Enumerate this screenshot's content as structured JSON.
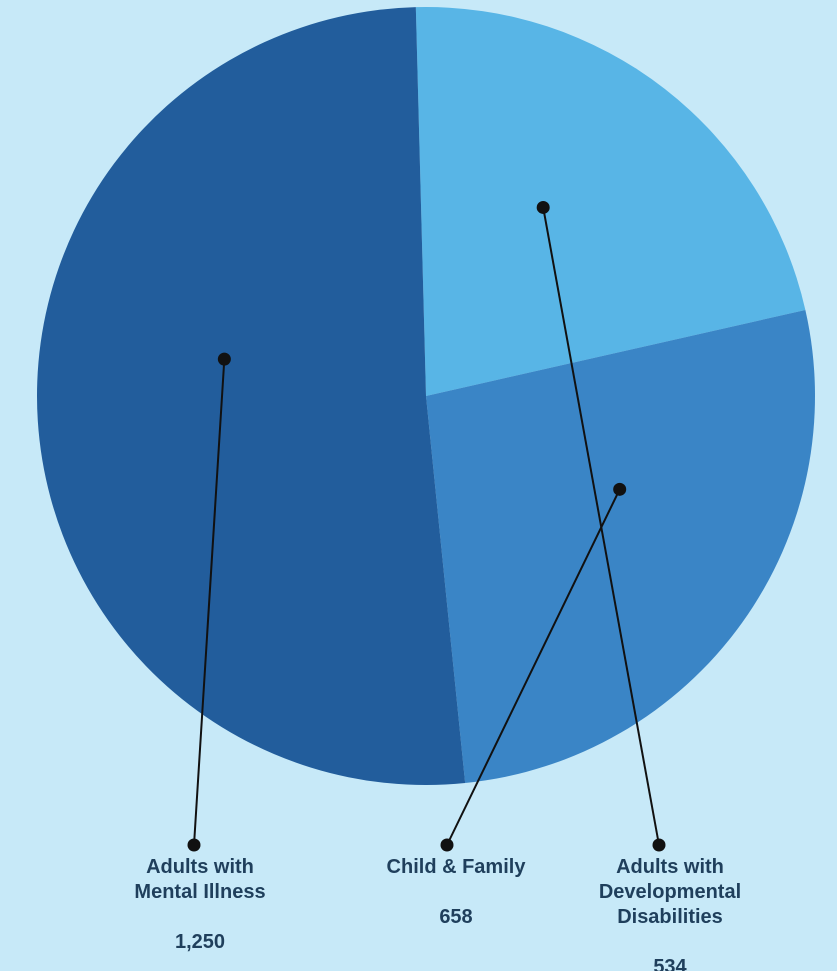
{
  "chart_data": {
    "type": "pie",
    "slices": [
      {
        "label": "Adults with\nMental Illness",
        "value_label": "1,250",
        "value": 1250,
        "color": "#225d9c"
      },
      {
        "label": "Child & Family",
        "value_label": "658",
        "value": 658,
        "color": "#3a85c6"
      },
      {
        "label": "Adults with\nDevelopmental\nDisabilities",
        "value_label": "534",
        "value": 534,
        "color": "#58b5e6"
      }
    ]
  },
  "colors": {
    "background": "#c7e9f8",
    "leader_line": "#111111",
    "label_text": "#1f3f5c"
  }
}
